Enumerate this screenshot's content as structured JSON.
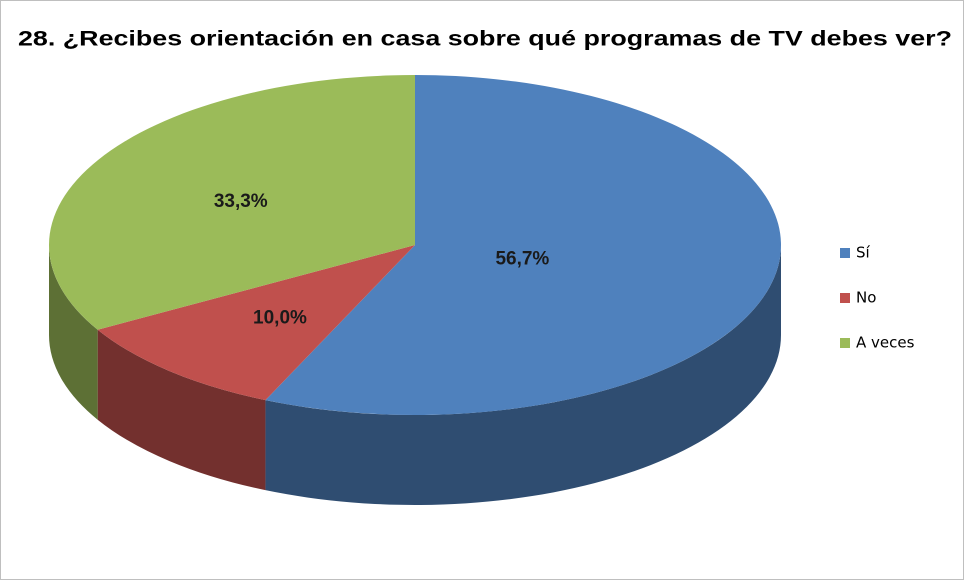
{
  "chart_data": {
    "type": "pie",
    "title": "28. ¿Recibes orientación en casa sobre qué programas de TV  debes ver?",
    "categories": [
      "Sí",
      "No",
      "A veces"
    ],
    "values": [
      56.7,
      10.0,
      33.3
    ],
    "value_labels": [
      "56,7%",
      "10,0%",
      "33,3%"
    ],
    "colors": [
      "#4f81bd",
      "#c0504d",
      "#9bbb59"
    ],
    "legend": "right"
  }
}
